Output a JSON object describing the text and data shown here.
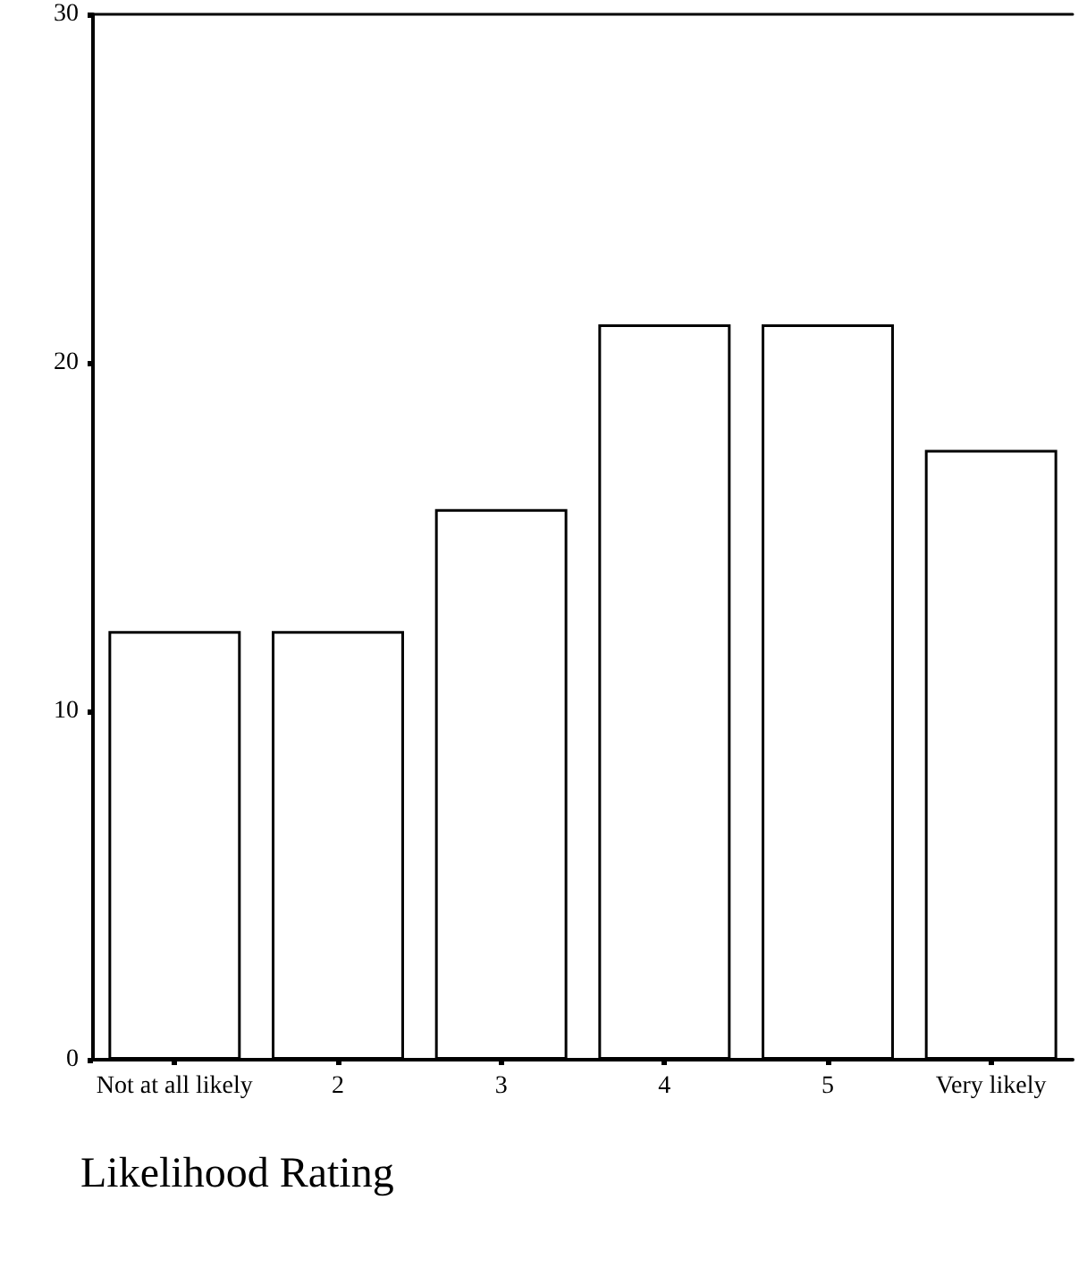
{
  "chart_data": {
    "type": "bar",
    "xlabel": "Likelihood Rating",
    "categories": [
      "Not at all likely",
      "2",
      "3",
      "4",
      "5",
      "Very likely"
    ],
    "values": [
      12.3,
      12.3,
      15.8,
      21.1,
      21.1,
      17.5
    ],
    "color": "#ffffff",
    "ylim": [
      0,
      30
    ],
    "yticks": [
      0,
      10,
      20,
      30
    ],
    "grid": false
  }
}
